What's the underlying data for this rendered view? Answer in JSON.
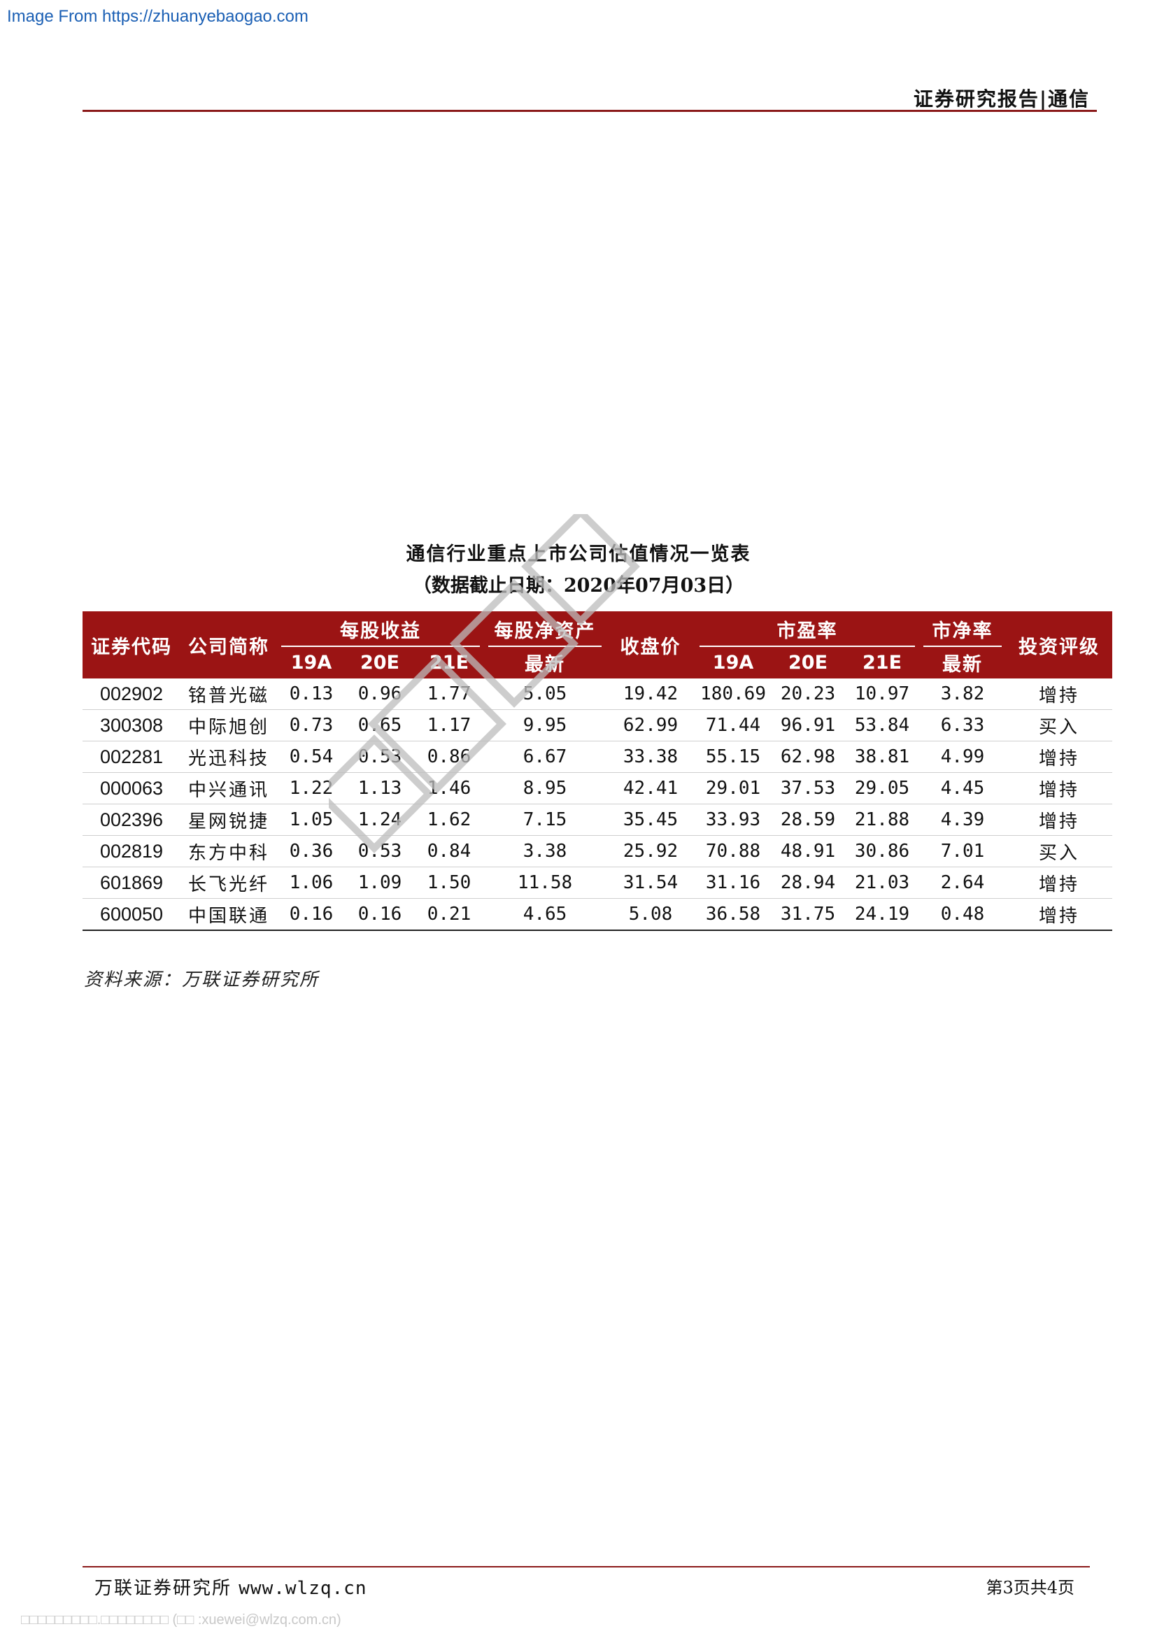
{
  "source_link": "Image From https://zhuanyebaogao.com",
  "header": {
    "title": "证券研究报告|通信"
  },
  "table": {
    "title": "通信行业重点上市公司估值情况一览表",
    "subtitle": "（数据截止日期：2020年07月03日）",
    "headers": {
      "code": "证券代码",
      "name": "公司简称",
      "eps": "每股收益",
      "bvps": "每股净资产",
      "close": "收盘价",
      "pe": "市盈率",
      "pb": "市净率",
      "rating": "投资评级",
      "y19": "19A",
      "y20": "20E",
      "y21": "21E",
      "latest": "最新"
    },
    "rows": [
      {
        "code": "002902",
        "name": "铭普光磁",
        "eps19": "0.13",
        "eps20": "0.96",
        "eps21": "1.77",
        "bvps": "5.05",
        "close": "19.42",
        "pe19": "180.69",
        "pe20": "20.23",
        "pe21": "10.97",
        "pb": "3.82",
        "rating": "增持"
      },
      {
        "code": "300308",
        "name": "中际旭创",
        "eps19": "0.73",
        "eps20": "0.65",
        "eps21": "1.17",
        "bvps": "9.95",
        "close": "62.99",
        "pe19": "71.44",
        "pe20": "96.91",
        "pe21": "53.84",
        "pb": "6.33",
        "rating": "买入"
      },
      {
        "code": "002281",
        "name": "光迅科技",
        "eps19": "0.54",
        "eps20": "0.53",
        "eps21": "0.86",
        "bvps": "6.67",
        "close": "33.38",
        "pe19": "55.15",
        "pe20": "62.98",
        "pe21": "38.81",
        "pb": "4.99",
        "rating": "增持"
      },
      {
        "code": "000063",
        "name": "中兴通讯",
        "eps19": "1.22",
        "eps20": "1.13",
        "eps21": "1.46",
        "bvps": "8.95",
        "close": "42.41",
        "pe19": "29.01",
        "pe20": "37.53",
        "pe21": "29.05",
        "pb": "4.45",
        "rating": "增持"
      },
      {
        "code": "002396",
        "name": "星网锐捷",
        "eps19": "1.05",
        "eps20": "1.24",
        "eps21": "1.62",
        "bvps": "7.15",
        "close": "35.45",
        "pe19": "33.93",
        "pe20": "28.59",
        "pe21": "21.88",
        "pb": "4.39",
        "rating": "增持"
      },
      {
        "code": "002819",
        "name": "东方中科",
        "eps19": "0.36",
        "eps20": "0.53",
        "eps21": "0.84",
        "bvps": "3.38",
        "close": "25.92",
        "pe19": "70.88",
        "pe20": "48.91",
        "pe21": "30.86",
        "pb": "7.01",
        "rating": "买入"
      },
      {
        "code": "601869",
        "name": "长飞光纤",
        "eps19": "1.06",
        "eps20": "1.09",
        "eps21": "1.50",
        "bvps": "11.58",
        "close": "31.54",
        "pe19": "31.16",
        "pe20": "28.94",
        "pe21": "21.03",
        "pb": "2.64",
        "rating": "增持"
      },
      {
        "code": "600050",
        "name": "中国联通",
        "eps19": "0.16",
        "eps20": "0.16",
        "eps21": "0.21",
        "bvps": "4.65",
        "close": "5.08",
        "pe19": "36.58",
        "pe20": "31.75",
        "pe21": "24.19",
        "pb": "0.48",
        "rating": "增持"
      }
    ]
  },
  "source_note": "资料来源：万联证券研究所",
  "footer": {
    "company": "万联证券研究所",
    "url": "www.wlzq.cn",
    "page": "第3页共4页"
  },
  "bottom_note": "□□□□□□□□□.□□□□□□□□ (□□ :xuewei@wlzq.com.cn)"
}
